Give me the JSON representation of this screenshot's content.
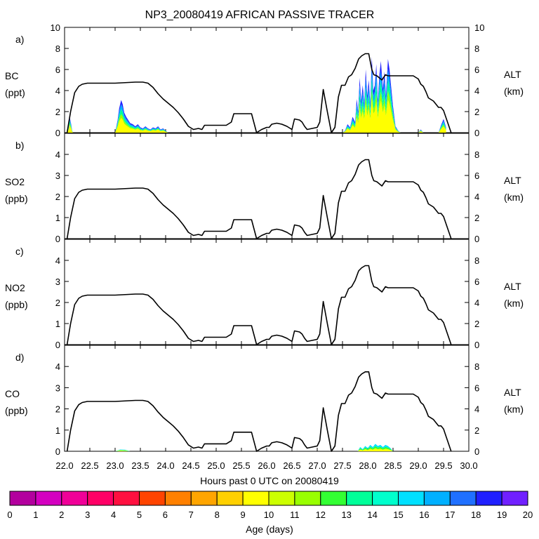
{
  "chart_data": {
    "type": "area",
    "title": "NP3_20080419 AFRICAN PASSIVE TRACER",
    "xlabel": "Hours past 0 UTC on 20080419",
    "xlim": [
      22.0,
      30.0
    ],
    "x_ticks": [
      "22.0",
      "22.5",
      "23.0",
      "23.5",
      "24.0",
      "24.5",
      "25.0",
      "25.5",
      "26.0",
      "26.5",
      "27.0",
      "27.5",
      "28.0",
      "28.5",
      "29.0",
      "29.5",
      "30.0"
    ],
    "right_axis": {
      "label": "ALT",
      "unit": "(km)"
    },
    "altitude_profile": {
      "name": "ALT (km)",
      "x": [
        22.05,
        22.12,
        22.2,
        22.28,
        22.35,
        22.45,
        22.6,
        23.0,
        23.4,
        23.55,
        23.65,
        23.75,
        23.85,
        23.95,
        24.05,
        24.15,
        24.25,
        24.35,
        24.45,
        24.55,
        24.65,
        24.72,
        24.77,
        24.9,
        25.2,
        25.3,
        25.35,
        25.4,
        25.5,
        25.6,
        25.7,
        25.8,
        25.9,
        26.0,
        26.05,
        26.1,
        26.2,
        26.3,
        26.4,
        26.5,
        26.55,
        26.65,
        26.7,
        26.75,
        26.8,
        26.9,
        27.0,
        27.05,
        27.12,
        27.2,
        27.28,
        27.35,
        27.42,
        27.48,
        27.55,
        27.62,
        27.68,
        27.75,
        27.82,
        27.88,
        27.95,
        28.02,
        28.08,
        28.12,
        28.18,
        28.28,
        28.35,
        28.4,
        28.5,
        28.7,
        28.9,
        29.0,
        29.05,
        29.1,
        29.15,
        29.2,
        29.3,
        29.4,
        29.45,
        29.5,
        29.55,
        29.65
      ],
      "y": [
        0,
        2.0,
        3.8,
        4.4,
        4.6,
        4.7,
        4.7,
        4.7,
        4.8,
        4.8,
        4.7,
        4.3,
        3.7,
        3.2,
        2.8,
        2.4,
        1.9,
        1.3,
        0.6,
        0.3,
        0.4,
        0.3,
        0.7,
        0.7,
        0.7,
        1.0,
        1.8,
        1.8,
        1.8,
        1.8,
        1.8,
        0.0,
        0.3,
        0.5,
        0.5,
        0.8,
        0.9,
        0.8,
        0.6,
        0.3,
        1.3,
        1.2,
        1.0,
        0.6,
        0.3,
        0.4,
        0.5,
        1.0,
        4.1,
        2.0,
        0.0,
        0.5,
        3.4,
        4.5,
        4.5,
        5.3,
        5.5,
        6.1,
        7.0,
        7.3,
        7.5,
        7.5,
        6.0,
        5.5,
        5.4,
        5.0,
        5.5,
        5.4,
        5.4,
        5.4,
        5.4,
        5.1,
        4.6,
        4.4,
        3.9,
        3.3,
        3.0,
        2.4,
        2.4,
        2.1,
        1.4,
        0
      ],
      "range": [
        0,
        10
      ]
    },
    "age_colorbar": {
      "label": "Age (days)",
      "ticks": [
        "0",
        "1",
        "2",
        "3",
        "4",
        "5",
        "6",
        "7",
        "8",
        "9",
        "10",
        "11",
        "12",
        "13",
        "14",
        "15",
        "16",
        "17",
        "18",
        "19",
        "20"
      ],
      "colors": [
        "#800080",
        "#b3009e",
        "#d400c0",
        "#f00098",
        "#ff0066",
        "#ff1040",
        "#ff4400",
        "#ff8000",
        "#ffa500",
        "#ffd000",
        "#ffff00",
        "#ccff00",
        "#99ff00",
        "#33ff33",
        "#00ff99",
        "#00ffcc",
        "#00e0ff",
        "#00b0ff",
        "#2070ff",
        "#2020ff",
        "#7020ff"
      ]
    },
    "panels": [
      {
        "letter": "a)",
        "species": "BC",
        "unit": "(ppt)",
        "left_ticks": [
          "0",
          "2",
          "4",
          "6",
          "8",
          "10"
        ],
        "ylim": [
          0,
          10
        ],
        "right_ticks": [
          "0",
          "2",
          "4",
          "6",
          "8",
          "10"
        ],
        "alt_range": [
          0,
          10
        ],
        "tracer": {
          "x": [
            22.05,
            22.08,
            22.1,
            22.13,
            22.15,
            22.17,
            23.0,
            23.05,
            23.08,
            23.12,
            23.15,
            23.18,
            23.22,
            23.26,
            23.3,
            23.35,
            23.4,
            23.45,
            23.5,
            23.55,
            23.6,
            23.65,
            23.7,
            23.75,
            23.8,
            23.85,
            23.9,
            23.95,
            24.0,
            24.05,
            27.5,
            27.55,
            27.6,
            27.65,
            27.7,
            27.75,
            27.78,
            27.81,
            27.84,
            27.87,
            27.9,
            27.93,
            27.96,
            27.99,
            28.02,
            28.05,
            28.08,
            28.11,
            28.14,
            28.17,
            28.2,
            28.23,
            28.26,
            28.3,
            28.33,
            28.36,
            28.4,
            28.43,
            28.46,
            28.5,
            28.55,
            28.6,
            28.65,
            29.0,
            29.05,
            29.1,
            29.4,
            29.45,
            29.5,
            29.55
          ],
          "y": [
            0,
            0.6,
            1.5,
            0.8,
            0.2,
            0,
            0,
            1.2,
            2.3,
            3.1,
            2.7,
            1.9,
            1.5,
            1.2,
            0.9,
            0.8,
            0.6,
            0.8,
            0.5,
            0.4,
            0.6,
            0.4,
            0.3,
            0.5,
            0.4,
            0.6,
            0.3,
            0.4,
            0.2,
            0,
            0,
            0.2,
            0.8,
            0.5,
            1.5,
            1.0,
            3.2,
            2.0,
            5.2,
            3.0,
            4.5,
            2.8,
            6.0,
            3.5,
            5.0,
            2.8,
            7.2,
            4.0,
            4.5,
            6.5,
            3.0,
            5.5,
            6.8,
            4.2,
            5.8,
            3.5,
            7.0,
            6.0,
            4.5,
            2.5,
            0.6,
            0.2,
            0,
            0,
            0.3,
            0,
            0,
            0.7,
            1.3,
            0.5
          ],
          "age_bands": [
            {
              "color_index": 10,
              "frac": 0.45
            },
            {
              "color_index": 12,
              "frac": 0.12
            },
            {
              "color_index": 14,
              "frac": 0.15
            },
            {
              "color_index": 17,
              "frac": 0.15
            },
            {
              "color_index": 19,
              "frac": 0.13
            }
          ]
        }
      },
      {
        "letter": "b)",
        "species": "SO2",
        "unit": "(ppb)",
        "left_ticks": [
          "0",
          "1",
          "2",
          "3",
          "4"
        ],
        "ylim": [
          0,
          5
        ],
        "right_ticks": [
          "0",
          "2",
          "4",
          "6",
          "8"
        ],
        "alt_range": [
          0,
          10
        ],
        "tracer": null
      },
      {
        "letter": "c)",
        "species": "NO2",
        "unit": "(ppb)",
        "left_ticks": [
          "0",
          "1",
          "2",
          "3",
          "4"
        ],
        "ylim": [
          0,
          5
        ],
        "right_ticks": [
          "0",
          "2",
          "4",
          "6",
          "8"
        ],
        "alt_range": [
          0,
          10
        ],
        "tracer": null
      },
      {
        "letter": "d)",
        "species": "CO",
        "unit": "(ppb)",
        "left_ticks": [
          "0",
          "1",
          "2",
          "3",
          "4"
        ],
        "ylim": [
          0,
          5
        ],
        "right_ticks": [
          "0",
          "2",
          "4",
          "6",
          "8"
        ],
        "alt_range": [
          0,
          10
        ],
        "tracer": {
          "x": [
            23.0,
            23.1,
            23.2,
            23.3,
            27.8,
            27.85,
            27.9,
            27.95,
            28.0,
            28.05,
            28.1,
            28.15,
            28.2,
            28.25,
            28.3,
            28.35,
            28.4,
            28.45,
            28.5
          ],
          "y": [
            0,
            0.08,
            0.07,
            0,
            0,
            0.2,
            0.1,
            0.25,
            0.15,
            0.3,
            0.2,
            0.35,
            0.25,
            0.3,
            0.2,
            0.3,
            0.25,
            0.15,
            0
          ],
          "age_bands": [
            {
              "color_index": 10,
              "frac": 0.4
            },
            {
              "color_index": 13,
              "frac": 0.3
            },
            {
              "color_index": 16,
              "frac": 0.3
            }
          ]
        }
      }
    ]
  }
}
